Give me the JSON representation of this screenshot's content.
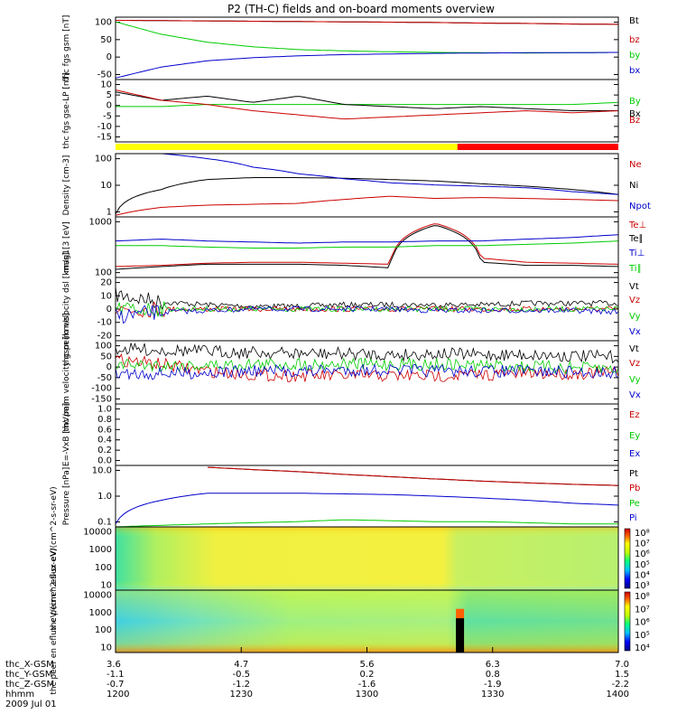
{
  "title": "P2 (TH-C) fields and on-board moments overview",
  "colors": {
    "black": "#000000",
    "red": "#cc0000",
    "green": "#00cc00",
    "blue": "#0000cc",
    "yellow": "#ffff00"
  },
  "status_bar": {
    "colors": [
      "#ffff00",
      "#ff0000"
    ],
    "split_fraction": 0.68
  },
  "chart_data": [
    {
      "type": "line",
      "ylabel": "thc fgs gsm [nT]",
      "yticks": [
        "100",
        "50",
        "0",
        "-50"
      ],
      "ylim": [
        -90,
        110
      ],
      "series": [
        {
          "name": "Bt",
          "color": "#000000",
          "values": [
            100,
            99,
            98,
            97,
            96,
            95,
            94,
            93,
            91,
            90,
            88,
            87
          ]
        },
        {
          "name": "bz",
          "color": "#cc0000",
          "values": [
            100,
            99,
            98,
            97,
            96,
            95,
            94,
            93,
            91,
            90,
            88,
            87
          ]
        },
        {
          "name": "by",
          "color": "#00cc00",
          "values": [
            95,
            55,
            30,
            15,
            6,
            2,
            -1,
            -3,
            -4,
            -5,
            -4,
            -3
          ]
        },
        {
          "name": "bx",
          "color": "#0000cc",
          "values": [
            -85,
            -50,
            -30,
            -20,
            -14,
            -10,
            -8,
            -6,
            -5,
            -4,
            -4,
            -3
          ]
        }
      ]
    },
    {
      "type": "line",
      "ylabel": "thc fgs gse-LP [nT]",
      "yticks": [
        "10",
        "5",
        "0",
        "-5",
        "-10",
        "-15"
      ],
      "ylim": [
        -18,
        12
      ],
      "series": [
        {
          "name": "By",
          "color": "#00cc00",
          "values": [
            -1,
            -1,
            0,
            0,
            0,
            0,
            0,
            0,
            0,
            0,
            0,
            1
          ]
        },
        {
          "name": "Bx",
          "color": "#000000",
          "values": [
            6,
            2,
            4,
            1,
            4,
            0,
            -1,
            -2,
            -1,
            -2,
            -3,
            -3
          ]
        },
        {
          "name": "Bz",
          "color": "#cc0000",
          "values": [
            7,
            2,
            0,
            -3,
            -5,
            -7,
            -6,
            -5,
            -4,
            -3,
            -4,
            -3
          ]
        }
      ]
    },
    {
      "type": "line",
      "ylabel": "Density [cm-3]",
      "yticks": [
        "100",
        "10",
        "1"
      ],
      "log": true,
      "ylim": [
        0.3,
        200
      ],
      "series": [
        {
          "name": "Ne",
          "color": "#cc0000",
          "values": [
            0.35,
            0.8,
            1.0,
            1.1,
            1.2,
            1.8,
            2.5,
            2.0,
            2.2,
            2.0,
            1.8,
            1.6
          ]
        },
        {
          "name": "Ni",
          "color": "#000000",
          "values": [
            0.4,
            5,
            14,
            17,
            17,
            16,
            14,
            12,
            9,
            7,
            5,
            3
          ]
        },
        {
          "name": "Npot",
          "color": "#0000cc",
          "values": [
            null,
            200,
            120,
            50,
            25,
            15,
            10,
            8,
            7,
            6,
            4,
            3
          ]
        }
      ]
    },
    {
      "type": "line",
      "ylabel": "mag1[3 [eV]",
      "yticks": [
        "1000",
        "100"
      ],
      "log": true,
      "ylim": [
        50,
        4000
      ],
      "series": [
        {
          "name": "Te⊥",
          "color": "#cc0000",
          "values": [
            110,
            120,
            140,
            150,
            150,
            140,
            130,
            2500,
            200,
            150,
            140,
            130
          ]
        },
        {
          "name": "Te∥",
          "color": "#000000",
          "values": [
            90,
            110,
            130,
            130,
            130,
            120,
            100,
            2200,
            150,
            120,
            120,
            110
          ]
        },
        {
          "name": "Ti⊥",
          "color": "#0000cc",
          "values": [
            700,
            800,
            700,
            650,
            600,
            650,
            650,
            700,
            700,
            800,
            900,
            1100
          ]
        },
        {
          "name": "Ti∥",
          "color": "#00cc00",
          "values": [
            500,
            500,
            450,
            420,
            420,
            450,
            450,
            500,
            500,
            550,
            600,
            700
          ]
        }
      ]
    },
    {
      "type": "line",
      "ylabel": "thc peim velocity dsl [km/s]",
      "yticks": [
        "20",
        "10",
        "0",
        "-10",
        "-20"
      ],
      "ylim": [
        -22,
        22
      ],
      "series": [
        {
          "name": "Vt",
          "color": "#000000",
          "values": [
            10,
            5,
            3,
            2,
            2,
            3,
            3,
            3,
            3,
            4,
            4,
            4
          ]
        },
        {
          "name": "Vz",
          "color": "#cc0000",
          "values": [
            0,
            0,
            0,
            0,
            0,
            0,
            0,
            0,
            0,
            0,
            0,
            0
          ]
        },
        {
          "name": "Vy",
          "color": "#00cc00",
          "values": [
            0,
            0,
            0,
            0,
            0,
            0,
            0,
            0,
            0,
            0,
            0,
            0
          ]
        },
        {
          "name": "Vx",
          "color": "#0000cc",
          "values": [
            -5,
            -2,
            -1,
            0,
            0,
            0,
            0,
            -1,
            -1,
            -1,
            -1,
            -2
          ]
        }
      ]
    },
    {
      "type": "line",
      "ylabel": "thc peim velocity gsm [km/s]",
      "yticks": [
        "100",
        "50",
        "0",
        "-50",
        "-100",
        "-150"
      ],
      "ylim": [
        -160,
        110
      ],
      "series": [
        {
          "name": "Vt",
          "color": "#000000",
          "values": [
            75,
            70,
            65,
            60,
            55,
            55,
            50,
            55,
            50,
            50,
            45,
            40
          ]
        },
        {
          "name": "Vz",
          "color": "#cc0000",
          "values": [
            30,
            10,
            -20,
            -35,
            -40,
            -40,
            -40,
            -40,
            -35,
            -30,
            -30,
            -25
          ]
        },
        {
          "name": "Vy",
          "color": "#00cc00",
          "values": [
            10,
            5,
            5,
            10,
            10,
            10,
            10,
            10,
            5,
            0,
            -5,
            -10
          ]
        },
        {
          "name": "Vx",
          "color": "#0000cc",
          "values": [
            -30,
            -30,
            -25,
            -20,
            -20,
            -15,
            -15,
            -20,
            -20,
            -20,
            -25,
            -25
          ]
        }
      ]
    },
    {
      "type": "line",
      "ylabel": "E=-VxB [mV/m]",
      "yticks": [
        "1.0",
        "0.8",
        "0.6",
        "0.4",
        "0.2",
        "0.0"
      ],
      "ylim": [
        0,
        1
      ],
      "series": [
        {
          "name": "Ez",
          "color": "#cc0000",
          "values": []
        },
        {
          "name": "Ey",
          "color": "#00cc00",
          "values": []
        },
        {
          "name": "Ex",
          "color": "#0000cc",
          "values": []
        }
      ]
    },
    {
      "type": "line",
      "ylabel": "Pressure [nPa]",
      "yticks": [
        "10.0",
        "1.0",
        "0.1"
      ],
      "log": true,
      "ylim": [
        0.03,
        12
      ],
      "series": [
        {
          "name": "Pt",
          "color": "#000000",
          "values": [
            null,
            null,
            10,
            8,
            6.5,
            5,
            4,
            3.2,
            2.6,
            2.2,
            1.9,
            1.7
          ]
        },
        {
          "name": "Pb",
          "color": "#cc0000",
          "values": [
            null,
            null,
            10,
            8,
            6.5,
            5,
            4,
            3.2,
            2.6,
            2.2,
            1.9,
            1.7
          ]
        },
        {
          "name": "Pe",
          "color": "#00cc00",
          "values": [
            0.03,
            0.035,
            0.04,
            0.045,
            0.05,
            0.06,
            0.055,
            0.05,
            0.05,
            0.045,
            0.04,
            0.04
          ]
        },
        {
          "name": "Pi",
          "color": "#0000cc",
          "values": [
            0.04,
            0.4,
            0.8,
            0.8,
            0.8,
            0.75,
            0.7,
            0.6,
            0.5,
            0.4,
            0.3,
            0.25
          ]
        }
      ]
    },
    {
      "type": "heatmap",
      "ylabel": "thc peir en eflux eV/(cm^2-s-sr-eV)",
      "yticks": [
        "10000",
        "1000",
        "100",
        "10"
      ],
      "colorbar_labels": [
        "10⁸",
        "10⁷",
        "10⁶",
        "10⁵",
        "10⁴",
        "10³"
      ],
      "log": true
    },
    {
      "type": "heatmap",
      "ylabel": "thc peer en eflux eV/(cm^2-s-sr-eV)",
      "yticks": [
        "10000",
        "1000",
        "100",
        "10"
      ],
      "colorbar_labels": [
        "10⁸",
        "10⁷",
        "10⁶",
        "10⁵",
        "10⁴"
      ],
      "log": true
    }
  ],
  "x_axis": {
    "row_labels": [
      "thc_X-GSM",
      "thc_Y-GSM",
      "thc_Z-GSM",
      "hhmm",
      "2009 Jul 01"
    ],
    "ticks": [
      {
        "x": 3.6,
        "y": -1.1,
        "z": -0.7,
        "hhmm": "1200"
      },
      {
        "x": 4.7,
        "y": -0.5,
        "z": -1.2,
        "hhmm": "1230"
      },
      {
        "x": 5.6,
        "y": 0.2,
        "z": -1.6,
        "hhmm": "1300"
      },
      {
        "x": 6.3,
        "y": 0.8,
        "z": -1.9,
        "hhmm": "1330"
      },
      {
        "x": 7.0,
        "y": 1.5,
        "z": -2.2,
        "hhmm": "1400"
      }
    ]
  }
}
